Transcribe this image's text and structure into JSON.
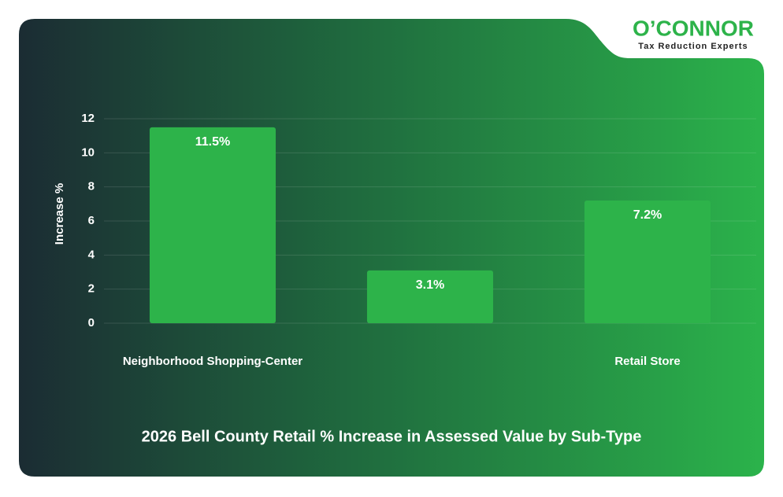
{
  "chart_data": {
    "type": "bar",
    "title": "2026 Bell County Retail % Increase in Assessed Value by Sub-Type",
    "y_label": "Increase %",
    "categories": [
      "Neighborhood Shopping-Center",
      null,
      "Retail Store"
    ],
    "values": [
      11.5,
      3.1,
      7.2
    ],
    "value_labels": [
      "11.5%",
      "3.1%",
      "7.2%"
    ],
    "color": "#2db34a",
    "ylim": [
      0,
      12
    ],
    "yticks": [
      0,
      2,
      4,
      6,
      8,
      10,
      12
    ],
    "grid": true
  },
  "logo": {
    "name": "O’CONNOR",
    "tagline": "Tax Reduction Experts"
  }
}
